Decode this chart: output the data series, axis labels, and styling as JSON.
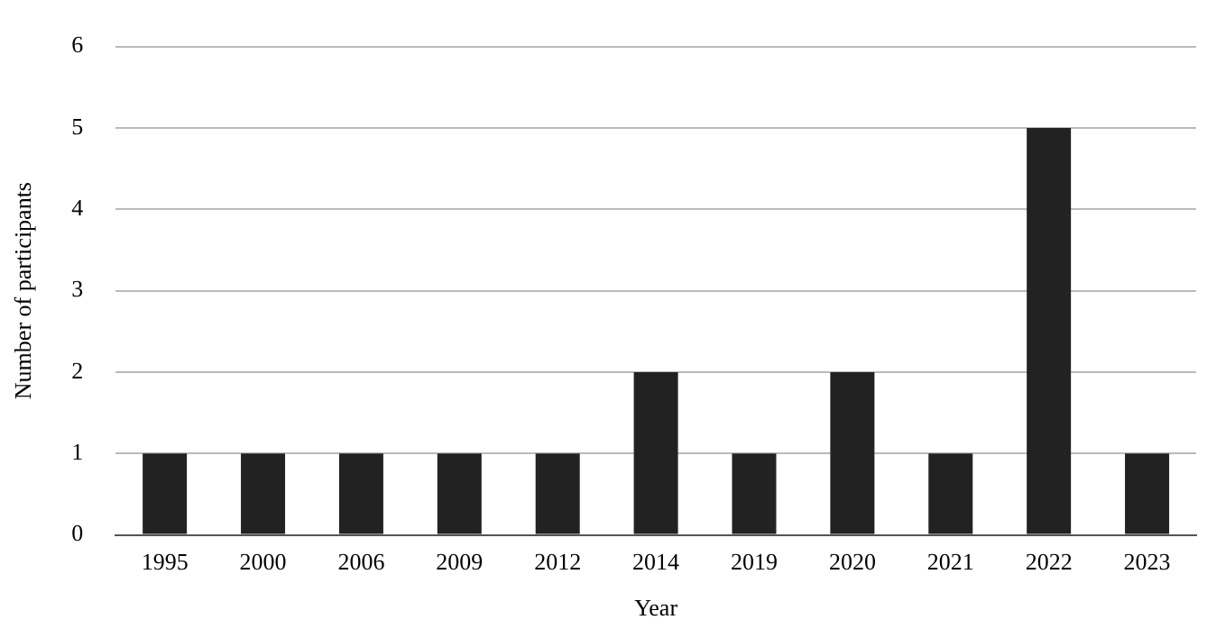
{
  "chart_data": {
    "type": "bar",
    "xlabel": "Year",
    "ylabel": "Number of participants",
    "categories": [
      "1995",
      "2000",
      "2006",
      "2009",
      "2012",
      "2014",
      "2019",
      "2020",
      "2021",
      "2022",
      "2023"
    ],
    "values": [
      1,
      1,
      1,
      1,
      1,
      2,
      1,
      2,
      1,
      5,
      1
    ],
    "color": "#222222",
    "ylim": [
      0,
      6
    ],
    "yticks": [
      0,
      1,
      2,
      3,
      4,
      5,
      6
    ],
    "grid": "y",
    "legend": false
  }
}
